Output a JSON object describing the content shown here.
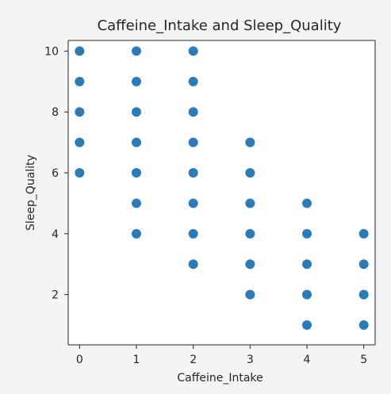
{
  "chart_data": {
    "type": "scatter",
    "title": "Caffeine_Intake and Sleep_Quality",
    "xlabel": "Caffeine_Intake",
    "ylabel": "Sleep_Quality",
    "xlim": [
      -0.2,
      5.2
    ],
    "ylim": [
      0.35,
      10.35
    ],
    "xticks": [
      0,
      1,
      2,
      3,
      4,
      5
    ],
    "yticks": [
      2,
      4,
      6,
      8,
      10
    ],
    "grid": false,
    "colors": {
      "marker": "#2c7bb6",
      "axis": "#262626",
      "plot_bg": "#ffffff",
      "page_bg": "#f3f4f6"
    },
    "points": [
      {
        "x": 0,
        "y": 10
      },
      {
        "x": 0,
        "y": 9
      },
      {
        "x": 0,
        "y": 8
      },
      {
        "x": 0,
        "y": 7
      },
      {
        "x": 0,
        "y": 6
      },
      {
        "x": 1,
        "y": 10
      },
      {
        "x": 1,
        "y": 9
      },
      {
        "x": 1,
        "y": 8
      },
      {
        "x": 1,
        "y": 7
      },
      {
        "x": 1,
        "y": 6
      },
      {
        "x": 1,
        "y": 5
      },
      {
        "x": 1,
        "y": 4
      },
      {
        "x": 2,
        "y": 10
      },
      {
        "x": 2,
        "y": 9
      },
      {
        "x": 2,
        "y": 8
      },
      {
        "x": 2,
        "y": 7
      },
      {
        "x": 2,
        "y": 6
      },
      {
        "x": 2,
        "y": 5
      },
      {
        "x": 2,
        "y": 4
      },
      {
        "x": 2,
        "y": 3
      },
      {
        "x": 3,
        "y": 7
      },
      {
        "x": 3,
        "y": 6
      },
      {
        "x": 3,
        "y": 5
      },
      {
        "x": 3,
        "y": 4
      },
      {
        "x": 3,
        "y": 3
      },
      {
        "x": 3,
        "y": 2
      },
      {
        "x": 4,
        "y": 5
      },
      {
        "x": 4,
        "y": 4
      },
      {
        "x": 4,
        "y": 3
      },
      {
        "x": 4,
        "y": 2
      },
      {
        "x": 4,
        "y": 1
      },
      {
        "x": 5,
        "y": 4
      },
      {
        "x": 5,
        "y": 3
      },
      {
        "x": 5,
        "y": 2
      },
      {
        "x": 5,
        "y": 1
      }
    ]
  }
}
